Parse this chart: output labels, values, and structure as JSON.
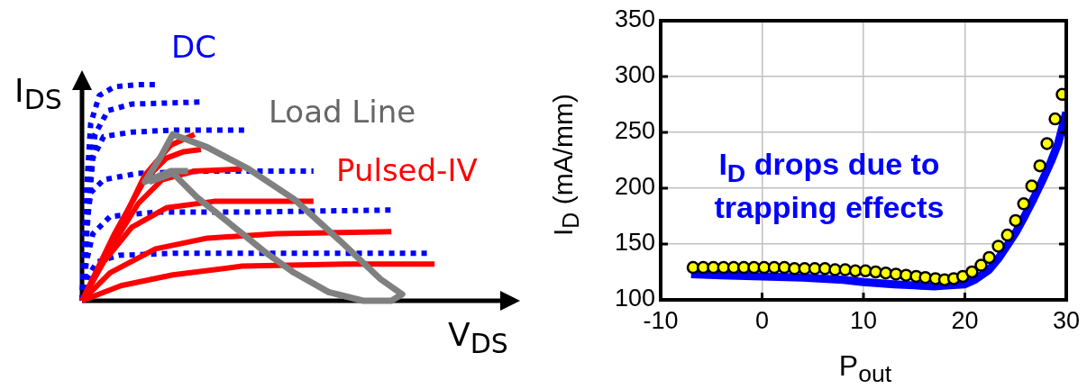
{
  "chart_data": [
    {
      "type": "other",
      "xlabel": "V$_{DS}$",
      "ylabel": "I$_{DS}$",
      "annotations": [
        "DC",
        "Load Line",
        "Pulsed-IV"
      ]
    },
    {
      "type": "line",
      "xlabel": "P$_{out}$",
      "ylabel": "I$_{D}$ (mA/mm)",
      "xlim": [
        -10,
        30
      ],
      "xticks": [
        -10,
        0,
        10,
        20,
        30
      ],
      "ylim": [
        100,
        350
      ],
      "yticks": [
        100,
        150,
        200,
        250,
        300,
        350
      ],
      "grid": true,
      "legend": false,
      "annotations": [
        "I$_{D}$ drops due to trapping effects"
      ],
      "series": [
        {
          "color": "#0000ff",
          "x": [
            -7,
            -4,
            0,
            4,
            8,
            10,
            13,
            15,
            17,
            18.5,
            20,
            21,
            22.4,
            23.3,
            24.2,
            25,
            25.9,
            26.8,
            27.7,
            28.5,
            29.2,
            30
          ],
          "values": [
            123,
            122,
            121,
            120,
            118,
            116,
            114,
            113,
            112,
            113,
            114,
            118,
            127,
            137,
            149,
            160,
            175,
            191,
            208,
            224,
            240,
            268
          ]
        },
        {
          "type": "scatter",
          "color": "#ffff00",
          "marker": "circle",
          "x": [
            -6.8,
            -5.8,
            -4.8,
            -3.8,
            -2.8,
            -1.8,
            -0.8,
            0.2,
            1.2,
            2.2,
            3.2,
            4.2,
            5.2,
            6.2,
            7.2,
            8.2,
            9.2,
            10.2,
            11.2,
            12.2,
            13.2,
            14.2,
            15.2,
            16.1,
            17.1,
            18.0,
            18.9,
            19.8,
            20.7,
            21.6,
            22.4,
            23.3,
            24.2,
            25.0,
            25.8,
            26.6,
            27.4,
            28.1,
            28.9,
            29.6
          ],
          "values": [
            129,
            129,
            129,
            129,
            129,
            129,
            129,
            129,
            129,
            129,
            128,
            128,
            128,
            128,
            127,
            127,
            126,
            126,
            125,
            124,
            123,
            122,
            121,
            120,
            119,
            118,
            119,
            121,
            125,
            131,
            138,
            148,
            158,
            171,
            186,
            202,
            220,
            240,
            262,
            284
          ]
        }
      ]
    }
  ]
}
